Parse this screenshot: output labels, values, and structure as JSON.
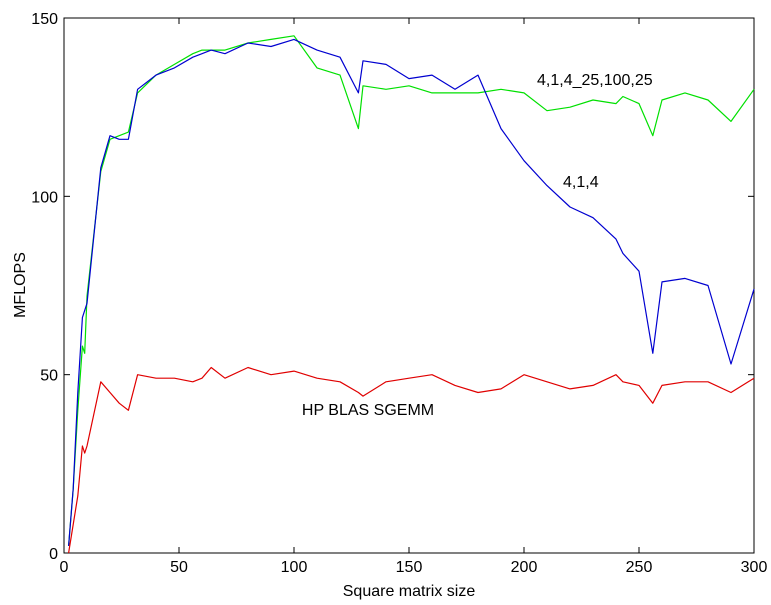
{
  "chart_data": {
    "type": "line",
    "title": "",
    "xlabel": "Square matrix size",
    "ylabel": "MFLOPS",
    "xlim": [
      0,
      300
    ],
    "ylim": [
      0,
      150
    ],
    "x_ticks": [
      0,
      50,
      100,
      150,
      200,
      250,
      300
    ],
    "y_ticks": [
      0,
      50,
      100,
      150
    ],
    "x_tick_labels": [
      "0",
      "50",
      "100",
      "150",
      "200",
      "250",
      "300"
    ],
    "y_tick_labels": [
      "0",
      "50",
      "100",
      "150"
    ],
    "grid": false,
    "legend": "none",
    "series": [
      {
        "color": "#00e000",
        "annotation": "4,1,4_25,100,25",
        "x": [
          2,
          4,
          6,
          8,
          9,
          10,
          16,
          20,
          24,
          28,
          32,
          40,
          48,
          56,
          60,
          64,
          70,
          80,
          90,
          100,
          110,
          120,
          128,
          130,
          140,
          150,
          160,
          170,
          180,
          190,
          200,
          210,
          220,
          230,
          240,
          243,
          250,
          256,
          260,
          270,
          280,
          290,
          300
        ],
        "y": [
          2,
          18,
          40,
          58,
          56,
          72,
          107,
          116,
          117,
          118,
          129,
          134,
          137,
          140,
          141,
          141,
          141,
          143,
          144,
          145,
          136,
          134,
          119,
          131,
          130,
          131,
          129,
          129,
          129,
          130,
          129,
          124,
          125,
          127,
          126,
          128,
          126,
          117,
          127,
          129,
          127,
          121,
          130
        ]
      },
      {
        "color": "#0000d0",
        "annotation": "4,1,4",
        "x": [
          2,
          4,
          6,
          8,
          10,
          16,
          20,
          24,
          28,
          32,
          40,
          48,
          56,
          60,
          64,
          70,
          80,
          90,
          100,
          110,
          120,
          128,
          130,
          140,
          150,
          160,
          170,
          180,
          190,
          200,
          210,
          220,
          230,
          240,
          243,
          250,
          256,
          260,
          270,
          280,
          290,
          300
        ],
        "y": [
          2,
          18,
          45,
          66,
          70,
          108,
          117,
          116,
          116,
          130,
          134,
          136,
          139,
          140,
          141,
          140,
          143,
          142,
          144,
          141,
          139,
          129,
          138,
          137,
          133,
          134,
          130,
          134,
          119,
          110,
          103,
          97,
          94,
          88,
          84,
          79,
          56,
          76,
          77,
          75,
          53,
          74
        ]
      },
      {
        "color": "#e00000",
        "annotation": "HP BLAS SGEMM",
        "x": [
          2,
          4,
          6,
          8,
          9,
          10,
          16,
          20,
          24,
          28,
          32,
          40,
          48,
          56,
          60,
          64,
          70,
          80,
          90,
          100,
          110,
          120,
          128,
          130,
          140,
          150,
          160,
          170,
          180,
          190,
          200,
          210,
          220,
          230,
          240,
          243,
          250,
          256,
          260,
          270,
          280,
          290,
          300
        ],
        "y": [
          0,
          8,
          16,
          30,
          28,
          30,
          48,
          45,
          42,
          40,
          50,
          49,
          49,
          48,
          49,
          52,
          49,
          52,
          50,
          51,
          49,
          48,
          45,
          44,
          48,
          49,
          50,
          47,
          45,
          46,
          50,
          48,
          46,
          47,
          50,
          48,
          47,
          42,
          47,
          48,
          48,
          45,
          49
        ]
      }
    ]
  }
}
